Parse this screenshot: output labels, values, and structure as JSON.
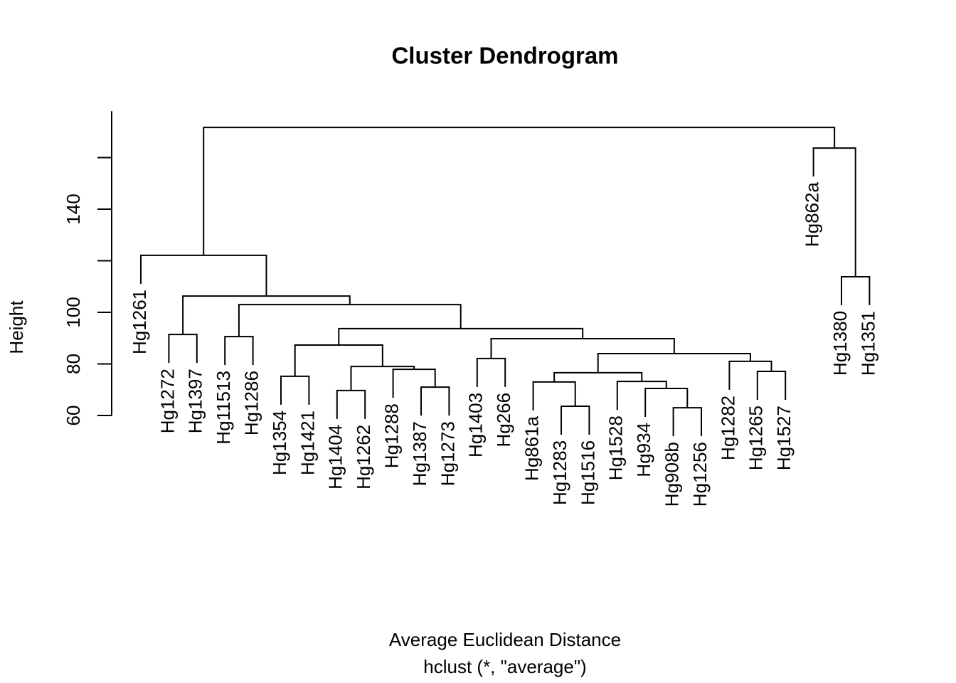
{
  "chart_data": {
    "type": "dendrogram",
    "title": "Cluster Dendrogram",
    "xlabel": "Average Euclidean Distance",
    "subtitle": "hclust (*, \"average\")",
    "ylabel": "Height",
    "ylim": [
      60,
      178
    ],
    "yticks": [
      60,
      80,
      100,
      {
        "value": 120,
        "label": null
      },
      140,
      {
        "value": 160,
        "label": null
      }
    ],
    "color": "#000000",
    "tree": {
      "height": 171.7,
      "children": [
        {
          "height": 122.1,
          "children": [
            {
              "label": "Hg1261"
            },
            {
              "height": 106.3,
              "children": [
                {
                  "height": 91.4,
                  "children": [
                    {
                      "label": "Hg1272"
                    },
                    {
                      "label": "Hg1397"
                    }
                  ]
                },
                {
                  "height": 103.0,
                  "children": [
                    {
                      "height": 90.6,
                      "children": [
                        {
                          "label": "Hg11513"
                        },
                        {
                          "label": "Hg1286"
                        }
                      ]
                    },
                    {
                      "height": 93.7,
                      "children": [
                        {
                          "height": 87.3,
                          "children": [
                            {
                              "height": 75.2,
                              "children": [
                                {
                                  "label": "Hg1354"
                                },
                                {
                                  "label": "Hg1421"
                                }
                              ]
                            },
                            {
                              "height": 79.0,
                              "children": [
                                {
                                  "height": 69.7,
                                  "children": [
                                    {
                                      "label": "Hg1404"
                                    },
                                    {
                                      "label": "Hg1262"
                                    }
                                  ]
                                },
                                {
                                  "height": 77.9,
                                  "children": [
                                    {
                                      "label": "Hg1288"
                                    },
                                    {
                                      "height": 71.0,
                                      "children": [
                                        {
                                          "label": "Hg1387"
                                        },
                                        {
                                          "label": "Hg1273"
                                        }
                                      ]
                                    }
                                  ]
                                }
                              ]
                            }
                          ]
                        },
                        {
                          "height": 89.8,
                          "children": [
                            {
                              "height": 82.1,
                              "children": [
                                {
                                  "label": "Hg1403"
                                },
                                {
                                  "label": "Hg266"
                                }
                              ]
                            },
                            {
                              "height": 84.0,
                              "children": [
                                {
                                  "height": 76.6,
                                  "children": [
                                    {
                                      "height": 73.0,
                                      "children": [
                                        {
                                          "label": "Hg861a"
                                        },
                                        {
                                          "height": 63.6,
                                          "children": [
                                            {
                                              "label": "Hg1283"
                                            },
                                            {
                                              "label": "Hg1516"
                                            }
                                          ]
                                        }
                                      ]
                                    },
                                    {
                                      "height": 73.2,
                                      "children": [
                                        {
                                          "label": "Hg1528"
                                        },
                                        {
                                          "height": 70.5,
                                          "children": [
                                            {
                                              "label": "Hg934"
                                            },
                                            {
                                              "height": 63.0,
                                              "children": [
                                                {
                                                  "label": "Hg908b"
                                                },
                                                {
                                                  "label": "Hg1256"
                                                }
                                              ]
                                            }
                                          ]
                                        }
                                      ]
                                    }
                                  ]
                                },
                                {
                                  "height": 81.0,
                                  "children": [
                                    {
                                      "label": "Hg1282"
                                    },
                                    {
                                      "height": 77.1,
                                      "children": [
                                        {
                                          "label": "Hg1265"
                                        },
                                        {
                                          "label": "Hg1527"
                                        }
                                      ]
                                    }
                                  ]
                                }
                              ]
                            }
                          ]
                        }
                      ]
                    }
                  ]
                }
              ]
            }
          ]
        },
        {
          "height": 163.7,
          "children": [
            {
              "label": "Hg862a"
            },
            {
              "height": 113.8,
              "children": [
                {
                  "label": "Hg1380"
                },
                {
                  "label": "Hg1351"
                }
              ]
            }
          ]
        }
      ]
    }
  }
}
